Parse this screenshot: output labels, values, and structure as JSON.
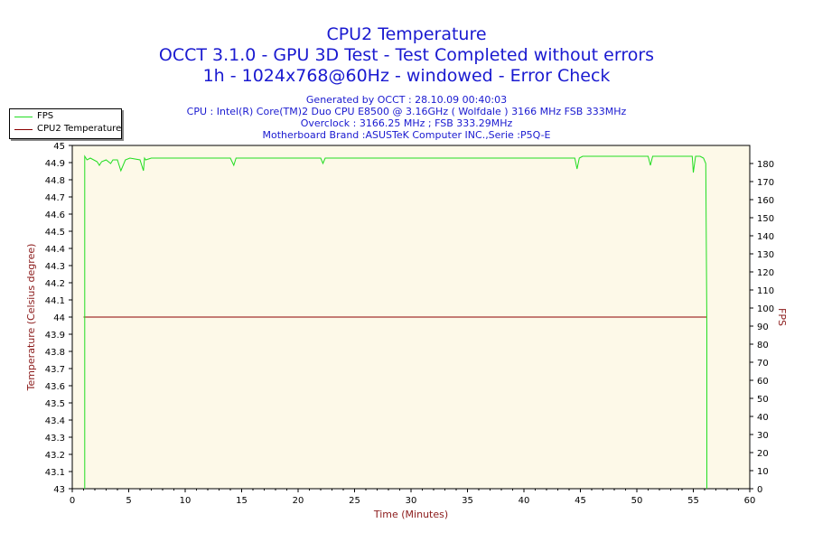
{
  "header": {
    "title": "CPU2 Temperature",
    "subtitle1": "OCCT 3.1.0 - GPU 3D Test - Test Completed without errors",
    "subtitle2": "1h - 1024x768@60Hz - windowed - Error Check",
    "info": [
      "Generated by OCCT : 28.10.09 00:40:03",
      "CPU : Intel(R) Core(TM)2 Duo CPU E8500 @ 3.16GHz ( Wolfdale ) 3166 MHz FSB 333MHz",
      "Overclock : 3166.25 MHz ; FSB 333.29MHz",
      "Motherboard Brand :ASUSTeK Computer INC.,Serie :P5Q-E"
    ]
  },
  "legend": {
    "items": [
      {
        "label": "FPS",
        "color": "#22dd22"
      },
      {
        "label": "CPU2 Temperature",
        "color": "#8b0000"
      }
    ]
  },
  "colors": {
    "plot_background": "#fdf9e8",
    "fps": "#22dd22",
    "temperature": "#8b0000",
    "axis_label": "#8b1a1a",
    "title": "#1a1ad0"
  },
  "chart_data": {
    "type": "line",
    "xlabel": "Time (Minutes)",
    "ylabel": "Temperature (Celsius degree)",
    "y2label": "FPS",
    "xlim": [
      0,
      60
    ],
    "ylim": [
      43,
      45
    ],
    "y2lim": [
      0,
      190
    ],
    "x_ticks": [
      0,
      5,
      10,
      15,
      20,
      25,
      30,
      35,
      40,
      45,
      50,
      55,
      60
    ],
    "y_ticks": [
      "43",
      "43.1",
      "43.2",
      "43.3",
      "43.4",
      "43.5",
      "43.6",
      "43.7",
      "43.8",
      "43.9",
      "44",
      "44.1",
      "44.2",
      "44.3",
      "44.4",
      "44.5",
      "44.6",
      "44.7",
      "44.8",
      "44.9",
      "45"
    ],
    "y2_ticks": [
      0,
      10,
      20,
      30,
      40,
      50,
      60,
      70,
      80,
      90,
      100,
      110,
      120,
      130,
      140,
      150,
      160,
      170,
      180
    ],
    "grid": false,
    "legend_position": "top-left",
    "series": [
      {
        "name": "CPU2 Temperature",
        "axis": "left",
        "x": [
          1.0,
          56.2
        ],
        "values": [
          44,
          44
        ]
      },
      {
        "name": "FPS",
        "axis": "right",
        "x": [
          1.1,
          1.1,
          1.3,
          1.6,
          2.2,
          2.4,
          2.6,
          3.0,
          3.4,
          3.6,
          4.0,
          4.3,
          4.7,
          5.1,
          6.0,
          6.3,
          6.4,
          6.5,
          7.0,
          8.0,
          10.0,
          12.0,
          14.0,
          14.3,
          14.5,
          15.0,
          20.0,
          22.0,
          22.2,
          22.4,
          25.0,
          30.0,
          35.0,
          40.0,
          44.5,
          44.7,
          44.9,
          45.2,
          47.0,
          50.0,
          51.0,
          51.2,
          51.4,
          52.0,
          54.0,
          54.9,
          55.0,
          55.2,
          55.6,
          55.9,
          56.1,
          56.2,
          56.2
        ],
        "values": [
          0,
          184,
          182,
          183,
          181,
          179,
          181,
          182,
          180,
          182,
          182,
          176,
          182,
          183,
          182,
          176,
          183,
          182,
          183,
          183,
          183,
          183,
          183,
          179,
          183,
          183,
          183,
          183,
          180,
          183,
          183,
          183,
          183,
          183,
          183,
          177,
          183,
          184,
          184,
          184,
          184,
          179,
          184,
          184,
          184,
          184,
          175,
          184,
          184,
          183,
          180,
          90,
          0
        ]
      }
    ]
  }
}
